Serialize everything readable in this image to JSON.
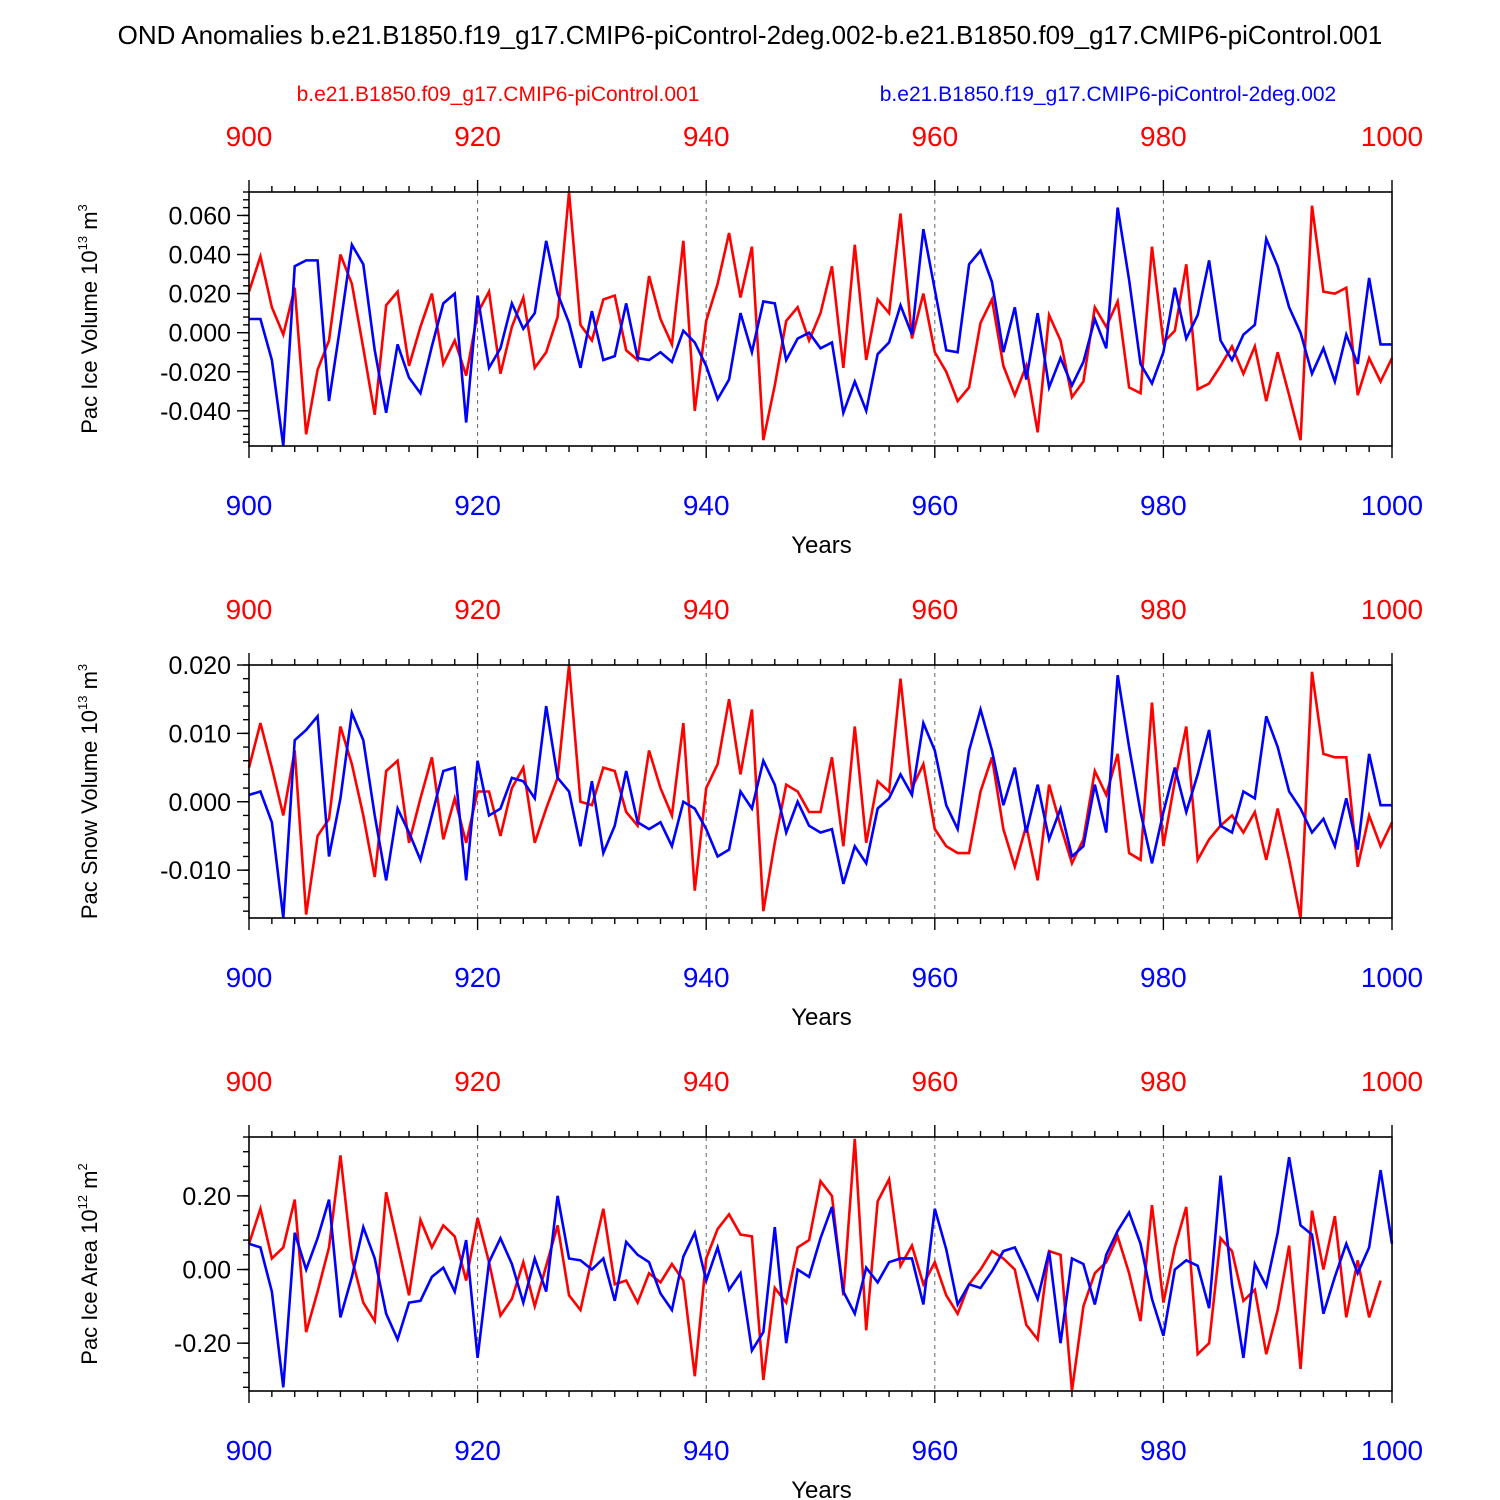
{
  "figure": {
    "title": "OND Anomalies b.e21.B1850.f19_g17.CMIP6-piControl-2deg.002-b.e21.B1850.f09_g17.CMIP6-piControl.001",
    "legend": {
      "red_label": "b.e21.B1850.f09_g17.CMIP6-piControl.001",
      "blue_label": "b.e21.B1850.f19_g17.CMIP6-piControl-2deg.002"
    },
    "colors": {
      "red": "#ff0000",
      "blue": "#0000ff"
    }
  },
  "chart_data": [
    {
      "type": "line",
      "title": "",
      "xlabel": "Years",
      "ylabel": "Pac Ice Volume 10",
      "ylabel_exp": "13",
      "ylabel_unit": " m",
      "ylabel_unit_exp": "3",
      "xlim": [
        900,
        1000
      ],
      "ylim": [
        -0.058,
        0.072
      ],
      "xticks": [
        900,
        920,
        940,
        960,
        980,
        1000
      ],
      "yticks": [
        -0.04,
        -0.02,
        0.0,
        0.02,
        0.04,
        0.06
      ],
      "ytick_labels": [
        "-0.040",
        "-0.020",
        "0.000",
        "0.020",
        "0.040",
        "0.060"
      ],
      "minor_step": 0.004,
      "series": [
        {
          "name": "b.e21.B1850.f09_g17.CMIP6-piControl.001",
          "color": "#ff0000",
          "values": [
            0.021,
            0.039,
            0.013,
            -0.001,
            0.023,
            -0.052,
            -0.019,
            -0.004,
            0.04,
            0.025,
            -0.008,
            -0.042,
            0.014,
            0.021,
            -0.017,
            0.003,
            0.02,
            -0.016,
            -0.004,
            -0.022,
            0.01,
            0.021,
            -0.021,
            0.003,
            0.018,
            -0.018,
            -0.01,
            0.008,
            0.072,
            0.004,
            -0.004,
            0.017,
            0.019,
            -0.009,
            -0.014,
            0.029,
            0.007,
            -0.006,
            0.047,
            -0.04,
            0.006,
            0.025,
            0.051,
            0.018,
            0.044,
            -0.055,
            -0.027,
            0.006,
            0.013,
            -0.004,
            0.01,
            0.034,
            -0.018,
            0.045,
            -0.014,
            0.017,
            0.01,
            0.061,
            -0.003,
            0.02,
            -0.01,
            -0.02,
            -0.035,
            -0.028,
            0.005,
            0.017,
            -0.017,
            -0.032,
            -0.017,
            -0.051,
            0.009,
            -0.004,
            -0.033,
            -0.025,
            0.013,
            0.003,
            0.016,
            -0.028,
            -0.031,
            0.044,
            -0.005,
            0.001,
            0.035,
            -0.029,
            -0.026,
            -0.017,
            -0.007,
            -0.021,
            -0.007,
            -0.035,
            -0.01,
            -0.032,
            -0.055,
            0.065,
            0.021,
            0.02,
            0.023,
            -0.032,
            -0.013,
            -0.025,
            -0.013
          ]
        },
        {
          "name": "b.e21.B1850.f19_g17.CMIP6-piControl-2deg.002",
          "color": "#0000ff",
          "values": [
            0.007,
            0.007,
            -0.014,
            -0.058,
            0.034,
            0.037,
            0.037,
            -0.035,
            0.004,
            0.045,
            0.035,
            -0.009,
            -0.041,
            -0.006,
            -0.023,
            -0.031,
            -0.007,
            0.015,
            0.02,
            -0.046,
            0.019,
            -0.018,
            -0.008,
            0.015,
            0.002,
            0.01,
            0.047,
            0.02,
            0.005,
            -0.018,
            0.011,
            -0.014,
            -0.012,
            0.015,
            -0.013,
            -0.014,
            -0.01,
            -0.015,
            0.001,
            -0.005,
            -0.017,
            -0.034,
            -0.024,
            0.01,
            -0.01,
            0.016,
            0.015,
            -0.014,
            -0.003,
            0.0,
            -0.008,
            -0.005,
            -0.041,
            -0.025,
            -0.04,
            -0.011,
            -0.005,
            0.014,
            -0.001,
            0.053,
            0.022,
            -0.009,
            -0.01,
            0.035,
            0.042,
            0.026,
            -0.01,
            0.013,
            -0.024,
            0.01,
            -0.028,
            -0.013,
            -0.027,
            -0.015,
            0.007,
            -0.008,
            0.064,
            0.027,
            -0.016,
            -0.026,
            -0.01,
            0.023,
            -0.003,
            0.009,
            0.037,
            -0.004,
            -0.014,
            -0.001,
            0.004,
            0.048,
            0.034,
            0.013,
            0.0,
            -0.021,
            -0.008,
            -0.025,
            -0.001,
            -0.016,
            0.028,
            -0.006,
            -0.006
          ]
        }
      ]
    },
    {
      "type": "line",
      "title": "",
      "xlabel": "Years",
      "ylabel": "Pac Snow Volume 10",
      "ylabel_exp": "13",
      "ylabel_unit": " m",
      "ylabel_unit_exp": "3",
      "xlim": [
        900,
        1000
      ],
      "ylim": [
        -0.017,
        0.02
      ],
      "xticks": [
        900,
        920,
        940,
        960,
        980,
        1000
      ],
      "yticks": [
        -0.01,
        0.0,
        0.01,
        0.02
      ],
      "ytick_labels": [
        "-0.010",
        "0.000",
        "0.010",
        "0.020"
      ],
      "minor_step": 0.002,
      "series": [
        {
          "name": "b.e21.B1850.f09_g17.CMIP6-piControl.001",
          "color": "#ff0000",
          "values": [
            0.005,
            0.0115,
            0.005,
            -0.002,
            0.0075,
            -0.0165,
            -0.005,
            -0.0025,
            0.011,
            0.0055,
            -0.002,
            -0.011,
            0.0045,
            0.006,
            -0.006,
            0.0005,
            0.0065,
            -0.0055,
            0.0005,
            -0.006,
            0.0015,
            0.0015,
            -0.005,
            0.002,
            0.005,
            -0.006,
            -0.001,
            0.0035,
            0.02,
            0.0,
            -0.0005,
            0.005,
            0.0045,
            -0.0015,
            -0.0035,
            0.0075,
            0.002,
            -0.002,
            0.0115,
            -0.013,
            0.002,
            0.0055,
            0.015,
            0.004,
            0.0135,
            -0.016,
            -0.006,
            0.0025,
            0.0015,
            -0.0015,
            -0.0015,
            0.0065,
            -0.0065,
            0.011,
            -0.006,
            0.003,
            0.0015,
            0.018,
            0.002,
            0.0055,
            -0.004,
            -0.0065,
            -0.0075,
            -0.0075,
            0.0015,
            0.0065,
            -0.004,
            -0.0095,
            -0.0035,
            -0.0115,
            0.0025,
            -0.0035,
            -0.009,
            -0.0055,
            0.0045,
            0.001,
            0.007,
            -0.0075,
            -0.0085,
            0.0145,
            -0.0065,
            0.003,
            0.011,
            -0.0085,
            -0.0055,
            -0.0035,
            -0.002,
            -0.0045,
            -0.0015,
            -0.0085,
            -0.001,
            -0.0085,
            -0.017,
            0.019,
            0.007,
            0.0065,
            0.0065,
            -0.0095,
            -0.002,
            -0.0065,
            -0.003
          ]
        },
        {
          "name": "b.e21.B1850.f19_g17.CMIP6-piControl-2deg.002",
          "color": "#0000ff",
          "values": [
            0.001,
            0.0015,
            -0.003,
            -0.017,
            0.009,
            0.0105,
            0.0125,
            -0.008,
            0.0005,
            0.013,
            0.009,
            -0.002,
            -0.0115,
            -0.001,
            -0.0045,
            -0.0085,
            -0.002,
            0.0045,
            0.005,
            -0.0115,
            0.006,
            -0.002,
            -0.001,
            0.0035,
            0.003,
            0.0005,
            0.014,
            0.0035,
            0.0015,
            -0.0065,
            0.003,
            -0.0075,
            -0.0035,
            0.0045,
            -0.003,
            -0.004,
            -0.003,
            -0.0065,
            0.0,
            -0.001,
            -0.004,
            -0.008,
            -0.007,
            0.0015,
            -0.001,
            0.006,
            0.0025,
            -0.0045,
            0.0,
            -0.0035,
            -0.0045,
            -0.004,
            -0.012,
            -0.0065,
            -0.009,
            -0.001,
            0.0005,
            0.004,
            0.001,
            0.0115,
            0.0075,
            -0.0005,
            -0.004,
            0.0075,
            0.0135,
            0.0075,
            -0.0005,
            0.005,
            -0.0045,
            0.0025,
            -0.0055,
            -0.001,
            -0.008,
            -0.0065,
            0.0025,
            -0.0045,
            0.0185,
            0.008,
            -0.0015,
            -0.009,
            -0.0015,
            0.005,
            -0.0015,
            0.004,
            0.0105,
            -0.0035,
            -0.0045,
            0.0015,
            0.0005,
            0.0125,
            0.008,
            0.0015,
            -0.001,
            -0.0045,
            -0.0025,
            -0.0065,
            0.0005,
            -0.007,
            0.007,
            -0.0005,
            -0.0005
          ]
        }
      ]
    },
    {
      "type": "line",
      "title": "",
      "xlabel": "Years",
      "ylabel": "Pac Ice Area 10",
      "ylabel_exp": "12",
      "ylabel_unit": " m",
      "ylabel_unit_exp": "2",
      "xlim": [
        900,
        1000
      ],
      "ylim": [
        -0.33,
        0.36
      ],
      "xticks": [
        900,
        920,
        940,
        960,
        980,
        1000
      ],
      "yticks": [
        -0.2,
        0.0,
        0.2
      ],
      "ytick_labels": [
        "-0.20",
        "0.00",
        "0.20"
      ],
      "minor_step": 0.04,
      "series": [
        {
          "name": "b.e21.B1850.f09_g17.CMIP6-piControl.001",
          "color": "#ff0000",
          "values": [
            0.07,
            0.165,
            0.03,
            0.06,
            0.19,
            -0.17,
            -0.06,
            0.06,
            0.31,
            0.03,
            -0.09,
            -0.14,
            0.21,
            0.07,
            -0.07,
            0.135,
            0.06,
            0.12,
            0.09,
            -0.03,
            0.14,
            0.02,
            -0.125,
            -0.08,
            0.02,
            -0.1,
            0.01,
            0.12,
            -0.07,
            -0.11,
            0.03,
            0.165,
            -0.04,
            -0.03,
            -0.09,
            -0.01,
            -0.035,
            0.015,
            -0.03,
            -0.29,
            0.03,
            0.11,
            0.15,
            0.095,
            0.09,
            -0.3,
            -0.05,
            -0.09,
            0.06,
            0.08,
            0.24,
            0.2,
            -0.07,
            0.355,
            -0.165,
            0.185,
            0.245,
            0.01,
            0.065,
            -0.04,
            0.02,
            -0.07,
            -0.12,
            -0.04,
            0.0,
            0.05,
            0.03,
            0.0,
            -0.15,
            -0.19,
            0.05,
            0.04,
            -0.33,
            -0.1,
            -0.01,
            0.02,
            0.09,
            -0.01,
            -0.14,
            0.175,
            -0.09,
            0.06,
            0.17,
            -0.23,
            -0.2,
            0.085,
            0.05,
            -0.085,
            -0.055,
            -0.23,
            -0.11,
            0.065,
            -0.27,
            0.16,
            0.0,
            0.145,
            -0.13,
            0.025,
            -0.13,
            -0.03
          ]
        },
        {
          "name": "b.e21.B1850.f19_g17.CMIP6-piControl-2deg.002",
          "color": "#0000ff",
          "values": [
            0.07,
            0.06,
            -0.06,
            -0.32,
            0.1,
            0.0,
            0.085,
            0.19,
            -0.13,
            -0.02,
            0.115,
            0.03,
            -0.12,
            -0.19,
            -0.09,
            -0.085,
            -0.02,
            0.005,
            -0.06,
            0.08,
            -0.24,
            0.02,
            0.085,
            0.015,
            -0.09,
            0.03,
            -0.06,
            0.2,
            0.03,
            0.025,
            0.0,
            0.03,
            -0.085,
            0.075,
            0.04,
            0.02,
            -0.065,
            -0.11,
            0.035,
            0.1,
            -0.03,
            0.06,
            -0.055,
            -0.01,
            -0.22,
            -0.17,
            0.115,
            -0.2,
            0.0,
            -0.02,
            0.085,
            0.17,
            -0.06,
            -0.12,
            0.005,
            -0.035,
            0.02,
            0.03,
            0.03,
            -0.095,
            0.165,
            0.055,
            -0.095,
            -0.04,
            -0.05,
            -0.005,
            0.05,
            0.06,
            -0.005,
            -0.08,
            0.05,
            -0.2,
            0.03,
            0.015,
            -0.095,
            0.04,
            0.105,
            0.155,
            0.07,
            -0.08,
            -0.18,
            0.0,
            0.025,
            0.01,
            -0.105,
            0.255,
            -0.04,
            -0.24,
            0.015,
            -0.045,
            0.1,
            0.305,
            0.12,
            0.095,
            -0.12,
            -0.02,
            0.07,
            -0.01,
            0.06,
            0.27,
            0.07
          ]
        }
      ]
    }
  ]
}
